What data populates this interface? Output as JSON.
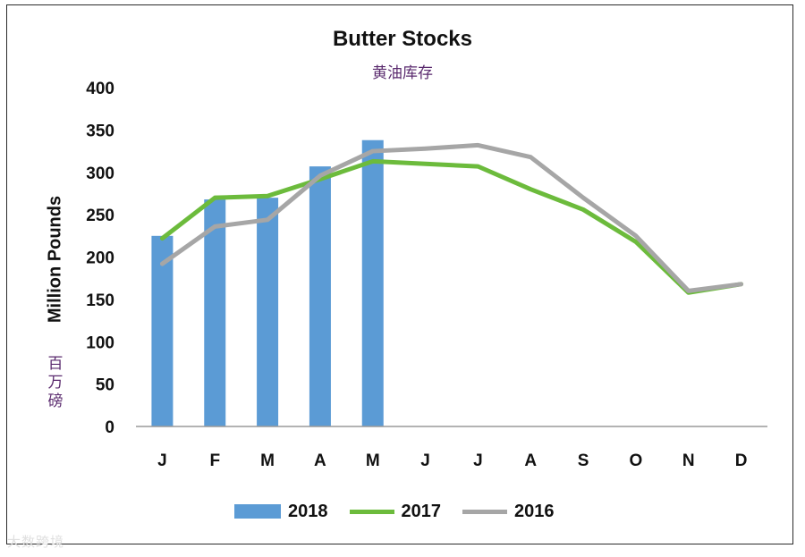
{
  "chart_data": {
    "type": "bar+line",
    "title": "Butter Stocks",
    "subtitle": "黄油库存",
    "ylabel": "Million Pounds",
    "ylabel_cn": "百万磅",
    "ylim": [
      0,
      400
    ],
    "yticks": [
      0,
      50,
      100,
      150,
      200,
      250,
      300,
      350,
      400
    ],
    "categories": [
      "J",
      "F",
      "M",
      "A",
      "M",
      "J",
      "J",
      "A",
      "S",
      "O",
      "N",
      "D"
    ],
    "series": [
      {
        "name": "2018",
        "kind": "bar",
        "color": "#5B9BD5",
        "values": [
          225,
          268,
          270,
          307,
          338,
          null,
          null,
          null,
          null,
          null,
          null,
          null
        ]
      },
      {
        "name": "2017",
        "kind": "line",
        "color": "#6CBB3C",
        "values": [
          222,
          270,
          272,
          292,
          313,
          310,
          307,
          280,
          256,
          218,
          158,
          168
        ]
      },
      {
        "name": "2016",
        "kind": "line",
        "color": "#A6A6A6",
        "values": [
          192,
          236,
          244,
          296,
          325,
          328,
          332,
          318,
          270,
          225,
          160,
          168
        ]
      }
    ],
    "legend_position": "bottom",
    "grid": false
  },
  "watermark": "大数跨境"
}
